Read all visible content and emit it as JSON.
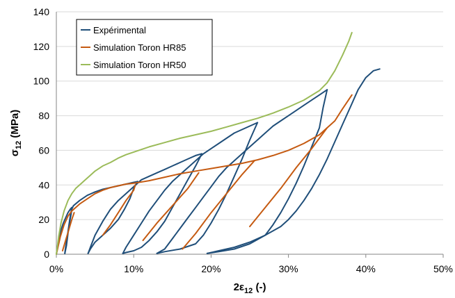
{
  "chart_data": {
    "type": "line",
    "xlabel": "2ε",
    "xlabel_sub": "12",
    "xlabel_unit": " (-)",
    "ylabel": "σ",
    "ylabel_sub": "12",
    "ylabel_unit": " (MPa)",
    "xlim": [
      0,
      0.5
    ],
    "ylim": [
      0,
      140
    ],
    "xticks": [
      {
        "value": 0,
        "label": "0%"
      },
      {
        "value": 0.1,
        "label": "10%"
      },
      {
        "value": 0.2,
        "label": "20%"
      },
      {
        "value": 0.3,
        "label": "30%"
      },
      {
        "value": 0.4,
        "label": "40%"
      },
      {
        "value": 0.5,
        "label": "50%"
      }
    ],
    "yticks": [
      {
        "value": 0,
        "label": "0"
      },
      {
        "value": 20,
        "label": "20"
      },
      {
        "value": 40,
        "label": "40"
      },
      {
        "value": 60,
        "label": "60"
      },
      {
        "value": 80,
        "label": "80"
      },
      {
        "value": 100,
        "label": "100"
      },
      {
        "value": 120,
        "label": "120"
      },
      {
        "value": 140,
        "label": "140"
      }
    ],
    "grid": "horizontal",
    "legend_position": "top-left",
    "series": [
      {
        "name": "Expérimental",
        "color": "#1f4e79",
        "segments": [
          [
            [
              0,
              0
            ],
            [
              0.003,
              8
            ],
            [
              0.006,
              14
            ],
            [
              0.009,
              18
            ],
            [
              0.012,
              21
            ],
            [
              0.015,
              24
            ],
            [
              0.018,
              26
            ],
            [
              0.02,
              27
            ]
          ],
          [
            [
              0.02,
              27
            ],
            [
              0.018,
              22
            ],
            [
              0.016,
              16
            ],
            [
              0.014,
              10
            ],
            [
              0.012,
              4
            ],
            [
              0.011,
              0.5
            ]
          ],
          [
            [
              0.011,
              0.5
            ],
            [
              0.013,
              5
            ],
            [
              0.015,
              12
            ],
            [
              0.017,
              18
            ],
            [
              0.019,
              23
            ],
            [
              0.02,
              26
            ],
            [
              0.022,
              28
            ],
            [
              0.03,
              31
            ],
            [
              0.04,
              34
            ],
            [
              0.05,
              36
            ],
            [
              0.06,
              37.5
            ],
            [
              0.07,
              38.5
            ],
            [
              0.08,
              39.5
            ],
            [
              0.09,
              40.5
            ],
            [
              0.1,
              41.5
            ],
            [
              0.105,
              42
            ]
          ],
          [
            [
              0.105,
              42
            ],
            [
              0.1,
              38
            ],
            [
              0.095,
              32
            ],
            [
              0.088,
              26
            ],
            [
              0.08,
              20
            ],
            [
              0.07,
              15
            ],
            [
              0.06,
              11
            ],
            [
              0.05,
              7
            ],
            [
              0.044,
              3
            ],
            [
              0.041,
              0.5
            ]
          ],
          [
            [
              0.041,
              0.5
            ],
            [
              0.044,
              4
            ],
            [
              0.05,
              11
            ],
            [
              0.06,
              19
            ],
            [
              0.07,
              26
            ],
            [
              0.08,
              31
            ],
            [
              0.09,
              35
            ],
            [
              0.1,
              39
            ],
            [
              0.11,
              43
            ],
            [
              0.12,
              45
            ],
            [
              0.13,
              47
            ],
            [
              0.14,
              49
            ],
            [
              0.15,
              51
            ],
            [
              0.16,
              53
            ],
            [
              0.17,
              55
            ],
            [
              0.18,
              57
            ],
            [
              0.188,
              58
            ]
          ],
          [
            [
              0.188,
              58
            ],
            [
              0.18,
              51
            ],
            [
              0.17,
              43
            ],
            [
              0.16,
              35
            ],
            [
              0.15,
              27
            ],
            [
              0.14,
              19
            ],
            [
              0.13,
              13
            ],
            [
              0.12,
              8
            ],
            [
              0.11,
              4
            ],
            [
              0.1,
              2
            ],
            [
              0.09,
              1
            ],
            [
              0.086,
              0.5
            ]
          ],
          [
            [
              0.086,
              0.5
            ],
            [
              0.09,
              4
            ],
            [
              0.1,
              11
            ],
            [
              0.11,
              18
            ],
            [
              0.12,
              25
            ],
            [
              0.13,
              31
            ],
            [
              0.14,
              37
            ],
            [
              0.15,
              42
            ],
            [
              0.16,
              46
            ],
            [
              0.17,
              50
            ],
            [
              0.18,
              54
            ],
            [
              0.19,
              58
            ],
            [
              0.2,
              61
            ],
            [
              0.21,
              64
            ],
            [
              0.22,
              67
            ],
            [
              0.23,
              70
            ],
            [
              0.24,
              72
            ],
            [
              0.25,
              74
            ],
            [
              0.26,
              76
            ]
          ],
          [
            [
              0.26,
              76
            ],
            [
              0.25,
              66
            ],
            [
              0.24,
              55
            ],
            [
              0.23,
              45
            ],
            [
              0.22,
              35
            ],
            [
              0.21,
              26
            ],
            [
              0.2,
              18
            ],
            [
              0.19,
              11
            ],
            [
              0.18,
              6
            ],
            [
              0.16,
              3
            ],
            [
              0.14,
              1.5
            ],
            [
              0.13,
              0.5
            ]
          ],
          [
            [
              0.13,
              0.5
            ],
            [
              0.14,
              3
            ],
            [
              0.15,
              9
            ],
            [
              0.16,
              15
            ],
            [
              0.17,
              21
            ],
            [
              0.18,
              27
            ],
            [
              0.19,
              33
            ],
            [
              0.2,
              39
            ],
            [
              0.21,
              45
            ],
            [
              0.22,
              50
            ],
            [
              0.23,
              54
            ],
            [
              0.24,
              58
            ],
            [
              0.25,
              62
            ],
            [
              0.26,
              66
            ],
            [
              0.27,
              70
            ],
            [
              0.28,
              74
            ],
            [
              0.29,
              77
            ],
            [
              0.3,
              80
            ],
            [
              0.31,
              83
            ],
            [
              0.32,
              86
            ],
            [
              0.33,
              89
            ],
            [
              0.34,
              92
            ],
            [
              0.35,
              95
            ]
          ],
          [
            [
              0.35,
              95
            ],
            [
              0.345,
              85
            ],
            [
              0.34,
              73
            ],
            [
              0.33,
              62
            ],
            [
              0.32,
              51
            ],
            [
              0.31,
              41
            ],
            [
              0.3,
              32
            ],
            [
              0.29,
              24
            ],
            [
              0.28,
              17
            ],
            [
              0.27,
              11
            ],
            [
              0.25,
              6
            ],
            [
              0.23,
              3
            ],
            [
              0.21,
              1.5
            ],
            [
              0.195,
              0.5
            ]
          ],
          [
            [
              0.195,
              0.5
            ],
            [
              0.21,
              2
            ],
            [
              0.23,
              4
            ],
            [
              0.25,
              7
            ],
            [
              0.27,
              11
            ],
            [
              0.29,
              16
            ],
            [
              0.3,
              20
            ],
            [
              0.31,
              25
            ],
            [
              0.32,
              31
            ],
            [
              0.33,
              38
            ],
            [
              0.34,
              46
            ],
            [
              0.35,
              55
            ],
            [
              0.36,
              65
            ],
            [
              0.37,
              75
            ],
            [
              0.38,
              85
            ],
            [
              0.39,
              95
            ],
            [
              0.4,
              102
            ],
            [
              0.41,
              106
            ],
            [
              0.418,
              107
            ]
          ]
        ]
      },
      {
        "name": "Simulation Toron HR85",
        "color": "#c55a11",
        "segments": [
          [
            [
              0,
              0
            ],
            [
              0.005,
              10
            ],
            [
              0.01,
              17
            ],
            [
              0.015,
              22
            ],
            [
              0.02,
              25
            ],
            [
              0.03,
              29
            ],
            [
              0.04,
              32
            ],
            [
              0.05,
              35
            ],
            [
              0.06,
              37
            ],
            [
              0.07,
              38.5
            ],
            [
              0.08,
              39.5
            ],
            [
              0.09,
              40.5
            ],
            [
              0.1,
              41
            ],
            [
              0.12,
              42.5
            ],
            [
              0.14,
              44.5
            ],
            [
              0.16,
              46.5
            ],
            [
              0.18,
              48
            ],
            [
              0.2,
              49.5
            ],
            [
              0.22,
              51
            ],
            [
              0.24,
              52.5
            ],
            [
              0.26,
              54.5
            ],
            [
              0.28,
              57
            ],
            [
              0.3,
              60
            ],
            [
              0.32,
              64
            ],
            [
              0.34,
              69
            ],
            [
              0.36,
              77
            ],
            [
              0.37,
              84
            ],
            [
              0.382,
              92
            ]
          ],
          [
            [
              0.008,
              2
            ],
            [
              0.012,
              8
            ],
            [
              0.016,
              14
            ],
            [
              0.02,
              20
            ],
            [
              0.023,
              24
            ]
          ],
          [
            [
              0.06,
              11
            ],
            [
              0.07,
              17
            ],
            [
              0.08,
              24
            ],
            [
              0.09,
              31
            ],
            [
              0.1,
              37
            ],
            [
              0.102,
              40
            ]
          ],
          [
            [
              0.112,
              8
            ],
            [
              0.13,
              18
            ],
            [
              0.15,
              28
            ],
            [
              0.17,
              38
            ],
            [
              0.184,
              47
            ]
          ],
          [
            [
              0.163,
              3
            ],
            [
              0.18,
              12
            ],
            [
              0.2,
              24
            ],
            [
              0.22,
              35
            ],
            [
              0.24,
              46
            ],
            [
              0.256,
              54
            ]
          ],
          [
            [
              0.25,
              16
            ],
            [
              0.27,
              27
            ],
            [
              0.29,
              38
            ],
            [
              0.31,
              50
            ],
            [
              0.33,
              61
            ],
            [
              0.35,
              73
            ]
          ]
        ]
      },
      {
        "name": "Simulation Toron HR50",
        "color": "#9bbb59",
        "segments": [
          [
            [
              0,
              0
            ],
            [
              0.003,
              10
            ],
            [
              0.006,
              18
            ],
            [
              0.01,
              25
            ],
            [
              0.015,
              31
            ],
            [
              0.02,
              35
            ],
            [
              0.025,
              38
            ],
            [
              0.03,
              40
            ],
            [
              0.04,
              44
            ],
            [
              0.05,
              48
            ],
            [
              0.06,
              51
            ],
            [
              0.07,
              53
            ],
            [
              0.08,
              55.5
            ],
            [
              0.09,
              57.5
            ],
            [
              0.1,
              59
            ],
            [
              0.12,
              62
            ],
            [
              0.14,
              64.5
            ],
            [
              0.16,
              67
            ],
            [
              0.18,
              69
            ],
            [
              0.2,
              71
            ],
            [
              0.22,
              73.5
            ],
            [
              0.24,
              76
            ],
            [
              0.26,
              78.5
            ],
            [
              0.28,
              81.5
            ],
            [
              0.3,
              85
            ],
            [
              0.32,
              89
            ],
            [
              0.34,
              94.5
            ],
            [
              0.35,
              99
            ],
            [
              0.36,
              106
            ],
            [
              0.37,
              115
            ],
            [
              0.378,
              123
            ],
            [
              0.382,
              128
            ]
          ]
        ]
      }
    ]
  }
}
